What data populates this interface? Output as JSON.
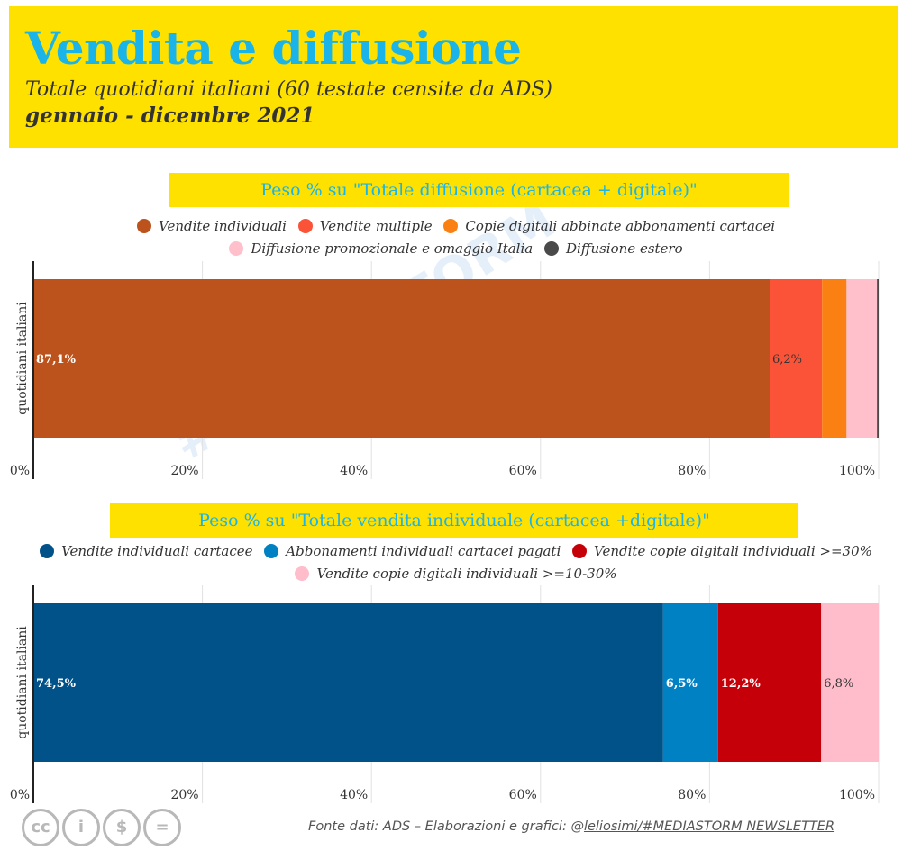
{
  "header": {
    "title": "Vendita e diffusione",
    "subtitle": "Totale quotidiani italiani (60 testate censite da ADS)",
    "period": "gennaio - dicembre 2021"
  },
  "watermark": "#MEDIASTORM",
  "footer": {
    "source_prefix": "Fonte dati: ADS – Elaborazioni e grafici: @",
    "source_handle": "leliosimi/#MEDIASTORM NEWSLETTER",
    "license_icons": [
      "cc-icon",
      "by-icon",
      "nc-icon",
      "nd-icon"
    ],
    "license_glyphs": [
      "cc",
      "i",
      "$",
      "="
    ]
  },
  "chart_data": [
    {
      "type": "bar",
      "orientation": "horizontal",
      "stacked": true,
      "title": "Peso % su \"Totale diffusione (cartacea + digitale)\"",
      "ylabel": "quotidiani italiani",
      "categories": [
        "quotidiani italiani"
      ],
      "xlim": [
        0,
        100
      ],
      "x_ticks": [
        "0%",
        "20%",
        "40%",
        "60%",
        "80%",
        "100%"
      ],
      "grid": true,
      "legend_position": "top",
      "series": [
        {
          "name": "Vendite individuali",
          "values": [
            87.1
          ],
          "color": "#bc531c",
          "label": "87,1%",
          "label_color": "#ffffff"
        },
        {
          "name": "Vendite multiple",
          "values": [
            6.2
          ],
          "color": "#fb5338",
          "label": "6,2%",
          "label_color": "#333333"
        },
        {
          "name": "Copie digitali abbinate abbonamenti cartacei",
          "values": [
            2.9
          ],
          "color": "#fb8014",
          "label": "",
          "label_color": "#333333"
        },
        {
          "name": "Diffusione promozionale e omaggio Italia",
          "values": [
            3.6
          ],
          "color": "#ffbfcb",
          "label": "",
          "label_color": "#333333"
        },
        {
          "name": "Diffusione estero",
          "values": [
            0.2
          ],
          "color": "#4a4a4a",
          "label": "",
          "label_color": "#333333"
        }
      ]
    },
    {
      "type": "bar",
      "orientation": "horizontal",
      "stacked": true,
      "title": "Peso % su \"Totale vendita individuale (cartacea +digitale)\"",
      "ylabel": "quotidiani italiani",
      "categories": [
        "quotidiani italiani"
      ],
      "xlim": [
        0,
        100
      ],
      "x_ticks": [
        "0%",
        "20%",
        "40%",
        "60%",
        "80%",
        "100%"
      ],
      "grid": true,
      "legend_position": "top",
      "series": [
        {
          "name": "Vendite individuali cartacee",
          "values": [
            74.5
          ],
          "color": "#005289",
          "label": "74,5%",
          "label_color": "#ffffff"
        },
        {
          "name": "Abbonamenti individuali cartacei pagati",
          "values": [
            6.5
          ],
          "color": "#0081c4",
          "label": "6,5%",
          "label_color": "#ffffff"
        },
        {
          "name": "Vendite copie digitali individuali >=30%",
          "values": [
            12.2
          ],
          "color": "#c60008",
          "label": "12,2%",
          "label_color": "#ffffff"
        },
        {
          "name": "Vendite copie digitali individuali >=10-30%",
          "values": [
            6.8
          ],
          "color": "#ffbccb",
          "label": "6,8%",
          "label_color": "#333333"
        }
      ]
    }
  ]
}
